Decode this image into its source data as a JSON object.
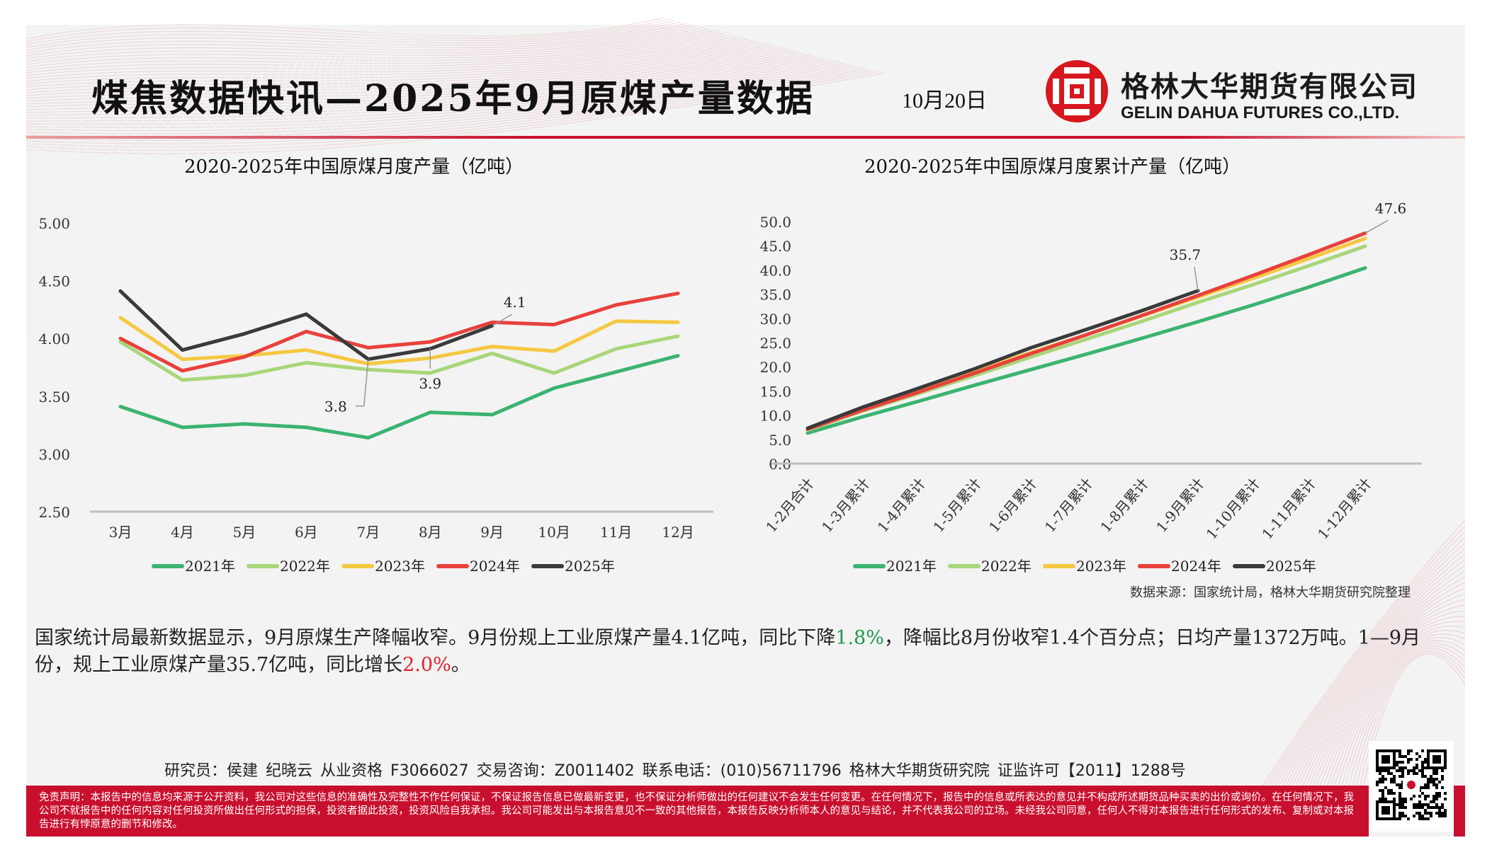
{
  "header": {
    "title": "煤焦数据快讯—2025年9月原煤产量数据",
    "date": "10月20日",
    "brand_cn": "格林大华期货有限公司",
    "brand_en": "GELIN DAHUA FUTURES CO.,LTD.",
    "logo_icon": "company-logo-icon"
  },
  "colors": {
    "accent": "#c8102e",
    "s2021": "#3cb371",
    "s2022": "#a8d67a",
    "s2023": "#f5c842",
    "s2024": "#e8413c",
    "s2025": "#3a3a3a"
  },
  "chart_data": [
    {
      "type": "line",
      "title": "2020-2025年中国原煤月度产量（亿吨）",
      "xlabel": "",
      "ylabel": "",
      "ylim": [
        2.5,
        5.0
      ],
      "yticks": [
        "5.00",
        "4.50",
        "4.00",
        "3.50",
        "3.00",
        "2.50"
      ],
      "categories": [
        "3月",
        "4月",
        "5月",
        "6月",
        "7月",
        "8月",
        "9月",
        "10月",
        "11月",
        "12月"
      ],
      "series": [
        {
          "name": "2021年",
          "color": "#3cb371",
          "values": [
            3.41,
            3.23,
            3.26,
            3.23,
            3.14,
            3.36,
            3.34,
            3.57,
            3.71,
            3.85
          ]
        },
        {
          "name": "2022年",
          "color": "#a8d67a",
          "values": [
            3.97,
            3.64,
            3.68,
            3.79,
            3.73,
            3.7,
            3.87,
            3.7,
            3.91,
            4.02
          ]
        },
        {
          "name": "2023年",
          "color": "#f5c842",
          "values": [
            4.18,
            3.82,
            3.85,
            3.9,
            3.78,
            3.83,
            3.93,
            3.89,
            4.15,
            4.14
          ]
        },
        {
          "name": "2024年",
          "color": "#e8413c",
          "values": [
            4.0,
            3.72,
            3.84,
            4.06,
            3.92,
            3.97,
            4.14,
            4.12,
            4.29,
            4.39
          ]
        },
        {
          "name": "2025年",
          "color": "#3a3a3a",
          "values": [
            4.41,
            3.9,
            4.04,
            4.21,
            3.82,
            3.91,
            4.11,
            null,
            null,
            null
          ]
        }
      ],
      "annotations": [
        {
          "series": "2025年",
          "category": "7月",
          "text": "3.8"
        },
        {
          "series": "2025年",
          "category": "8月",
          "text": "3.9"
        },
        {
          "series": "2025年",
          "category": "9月",
          "text": "4.1"
        }
      ],
      "grid": false,
      "legend": "bottom"
    },
    {
      "type": "line",
      "title": "2020-2025年中国原煤月度累计产量（亿吨）",
      "xlabel": "",
      "ylabel": "",
      "ylim": [
        0,
        50
      ],
      "yticks": [
        "50.0",
        "45.0",
        "40.0",
        "35.0",
        "30.0",
        "25.0",
        "20.0",
        "15.0",
        "10.0",
        "5.0",
        "0.0"
      ],
      "categories": [
        "1-2月合计",
        "1-3月累计",
        "1-4月累计",
        "1-5月累计",
        "1-6月累计",
        "1-7月累计",
        "1-8月累计",
        "1-9月累计",
        "1-10月累计",
        "1-11月累计",
        "1-12月累计"
      ],
      "series": [
        {
          "name": "2021年",
          "color": "#3cb371",
          "values": [
            6.3,
            9.7,
            12.9,
            16.2,
            19.4,
            22.6,
            25.9,
            29.3,
            32.8,
            36.5,
            40.4
          ]
        },
        {
          "name": "2022年",
          "color": "#a8d67a",
          "values": [
            6.9,
            10.9,
            14.5,
            18.2,
            22.0,
            25.7,
            29.4,
            33.3,
            37.0,
            40.9,
            44.9
          ]
        },
        {
          "name": "2023年",
          "color": "#f5c842",
          "values": [
            7.1,
            11.3,
            15.1,
            19.0,
            22.9,
            26.6,
            30.5,
            34.4,
            38.3,
            42.4,
            46.5
          ]
        },
        {
          "name": "2024年",
          "color": "#e8413c",
          "values": [
            7.1,
            11.1,
            14.8,
            18.7,
            22.7,
            26.6,
            30.6,
            34.7,
            38.9,
            43.2,
            47.6
          ]
        },
        {
          "name": "2025年",
          "color": "#3a3a3a",
          "values": [
            7.3,
            11.7,
            15.6,
            19.6,
            23.9,
            27.7,
            31.6,
            35.7,
            null,
            null,
            null
          ]
        }
      ],
      "annotations": [
        {
          "series": "2025年",
          "category": "1-9月累计",
          "text": "35.7"
        },
        {
          "series": "2024年",
          "category": "1-12月累计",
          "text": "47.6"
        }
      ],
      "grid": false,
      "legend": "bottom"
    }
  ],
  "source": "数据来源：国家统计局，格林大华期货研究院整理",
  "summary": {
    "p1": "国家统计局最新数据显示，9月原煤生产降幅收窄。9月份规上工业原煤产量4.1亿吨，同比下降",
    "v1": "1.8%",
    "p2": "，降幅比8月份收窄1.4个百分点；日均产量1372万吨。1—9月份，规上工业原煤产量35.7亿吨，同比增长",
    "v2": "2.0%",
    "p3": "。"
  },
  "footer": {
    "contact": "研究员：侯建 纪晓云   从业资格 F3066027   交易咨询：Z0011402    联系电话：(010)56711796      格林大华期货研究院  证监许可【2011】1288号",
    "disclaimer": "免责声明：本报告中的信息均来源于公开资料，我公司对这些信息的准确性及完整性不作任何保证，不保证报告信息已做最新变更，也不保证分析师做出的任何建议不会发生任何变更。在任何情况下，报告中的信息或所表达的意见并不构成所述期货品种买卖的出价或询价。在任何情况下，我公司不就报告中的任何内容对任何投资所做出任何形式的担保，投资者据此投资，投资风险自我承担。我公司可能发出与本报告意见不一致的其他报告，本报告反映分析师本人的意见与结论，并不代表我公司的立场。未经我公司同意，任何人不得对本报告进行任何形式的发布、复制或对本报告进行有悖原意的删节和修改。",
    "qr_icon": "qr-code-icon"
  }
}
